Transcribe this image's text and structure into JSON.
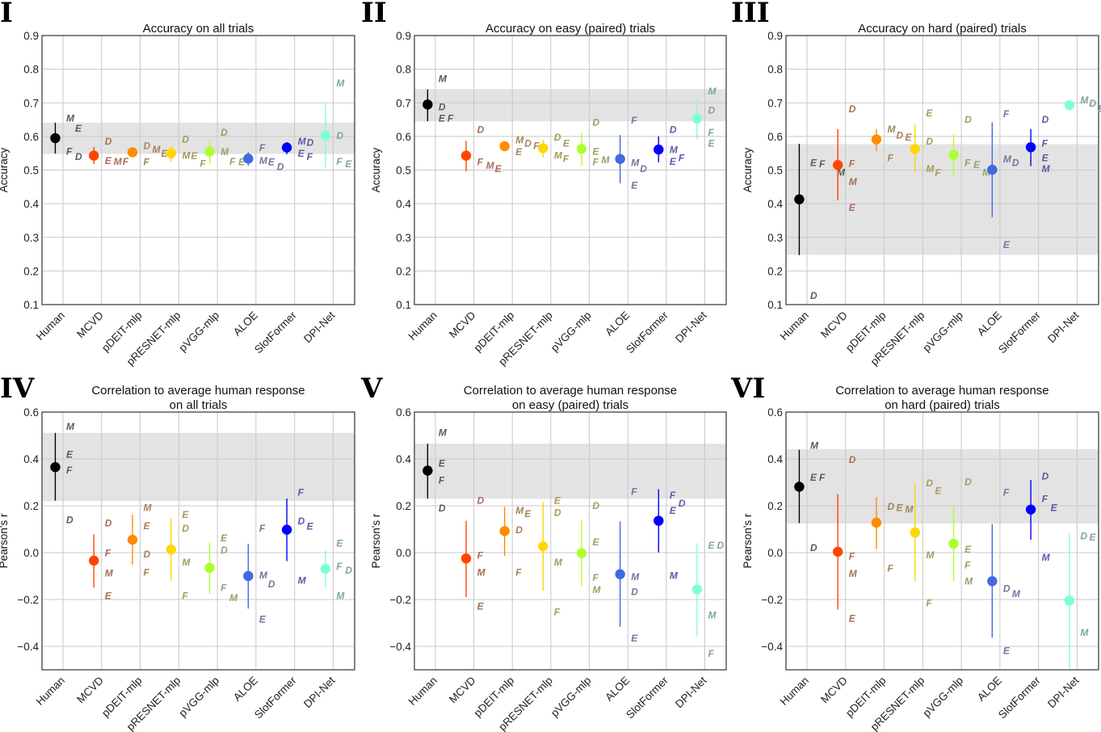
{
  "chart_data": {
    "type": "scatter",
    "models": [
      "Human",
      "MCVD",
      "pDEIT-mlp",
      "pRESNET-mlp",
      "pVGG-mlp",
      "ALOE",
      "SlotFormer",
      "DPI-Net"
    ],
    "model_colors": [
      "#000000",
      "#ff4500",
      "#ff8c00",
      "#ffd700",
      "#adff2f",
      "#4169e1",
      "#0000ff",
      "#7fffd4"
    ],
    "band_color": "#e3e3e3",
    "grid": true,
    "panels": [
      {
        "numeral": "I",
        "title": [
          "Accuracy on all trials"
        ],
        "ylabel": "Accuracy",
        "ylim": [
          0.1,
          0.9
        ],
        "yticks": [
          "0.1",
          "0.2",
          "0.3",
          "0.4",
          "0.5",
          "0.6",
          "0.7",
          "0.8",
          "0.9"
        ],
        "band": [
          0.548,
          0.641
        ],
        "points": [
          {
            "mean": 0.595,
            "ci": [
              0.549,
              0.641
            ],
            "labels": {
              "M": 0.655,
              "E": 0.625,
              "F": 0.557,
              "D": 0.541
            }
          },
          {
            "mean": 0.543,
            "ci": [
              0.518,
              0.569
            ],
            "labels": {
              "D": 0.587,
              "M": 0.527,
              "E": 0.529,
              "F": 0.527
            }
          },
          {
            "mean": 0.553,
            "ci": [
              0.54,
              0.566
            ],
            "labels": {
              "M": 0.563,
              "D": 0.573,
              "E": 0.55,
              "F": 0.525
            }
          },
          {
            "mean": 0.55,
            "ci": [
              0.524,
              0.571
            ],
            "labels": {
              "D": 0.593,
              "M": 0.545,
              "E": 0.543,
              "F": 0.521
            }
          },
          {
            "mean": 0.555,
            "ci": [
              0.52,
              0.59
            ],
            "labels": {
              "D": 0.613,
              "M": 0.555,
              "E": 0.525,
              "F": 0.527
            }
          },
          {
            "mean": 0.534,
            "ci": [
              0.513,
              0.553
            ],
            "labels": {
              "F": 0.567,
              "M": 0.529,
              "E": 0.525,
              "D": 0.511
            }
          },
          {
            "mean": 0.567,
            "ci": [
              0.547,
              0.583
            ],
            "labels": {
              "M": 0.587,
              "D": 0.583,
              "E": 0.55,
              "F": 0.541
            }
          },
          {
            "mean": 0.603,
            "ci": [
              0.505,
              0.7
            ],
            "labels": {
              "M": 0.759,
              "D": 0.603,
              "E": 0.519,
              "F": 0.527
            }
          }
        ]
      },
      {
        "numeral": "II",
        "title": [
          "Accuracy on easy (paired) trials"
        ],
        "ylabel": "Accuracy",
        "ylim": [
          0.1,
          0.9
        ],
        "yticks": [
          "0.1",
          "0.2",
          "0.3",
          "0.4",
          "0.5",
          "0.6",
          "0.7",
          "0.8",
          "0.9"
        ],
        "band": [
          0.645,
          0.741
        ],
        "points": [
          {
            "mean": 0.695,
            "ci": [
              0.645,
              0.74
            ],
            "labels": {
              "M": 0.773,
              "D": 0.689,
              "E": 0.655,
              "F": 0.655
            }
          },
          {
            "mean": 0.543,
            "ci": [
              0.496,
              0.587
            ],
            "labels": {
              "D": 0.621,
              "M": 0.515,
              "E": 0.505,
              "F": 0.525
            }
          },
          {
            "mean": 0.571,
            "ci": [
              0.562,
              0.58
            ],
            "labels": {
              "M": 0.59,
              "D": 0.581,
              "E": 0.555,
              "F": 0.573
            }
          },
          {
            "mean": 0.565,
            "ci": [
              0.538,
              0.59
            ],
            "labels": {
              "D": 0.599,
              "E": 0.581,
              "M": 0.545,
              "F": 0.535
            }
          },
          {
            "mean": 0.563,
            "ci": [
              0.513,
              0.611
            ],
            "labels": {
              "D": 0.643,
              "E": 0.557,
              "M": 0.531,
              "F": 0.525
            }
          },
          {
            "mean": 0.533,
            "ci": [
              0.461,
              0.604
            ],
            "labels": {
              "F": 0.649,
              "M": 0.523,
              "D": 0.505,
              "E": 0.455
            }
          },
          {
            "mean": 0.561,
            "ci": [
              0.523,
              0.6
            ],
            "labels": {
              "D": 0.621,
              "M": 0.561,
              "E": 0.527,
              "F": 0.537
            }
          },
          {
            "mean": 0.653,
            "ci": [
              0.59,
              0.711
            ],
            "labels": {
              "M": 0.735,
              "D": 0.679,
              "F": 0.613,
              "E": 0.581
            }
          }
        ]
      },
      {
        "numeral": "III",
        "title": [
          "Accuracy on hard (paired) trials"
        ],
        "ylabel": "Accuracy",
        "ylim": [
          0.1,
          0.9
        ],
        "yticks": [
          "0.1",
          "0.2",
          "0.3",
          "0.4",
          "0.5",
          "0.6",
          "0.7",
          "0.8",
          "0.9"
        ],
        "band": [
          0.248,
          0.577
        ],
        "points": [
          {
            "mean": 0.413,
            "ci": [
              0.247,
              0.578
            ],
            "labels": {
              "E": 0.523,
              "F": 0.519,
              "M": 0.494,
              "D": 0.128
            }
          },
          {
            "mean": 0.515,
            "ci": [
              0.41,
              0.622
            ],
            "labels": {
              "D": 0.683,
              "F": 0.521,
              "M": 0.466,
              "E": 0.389
            }
          },
          {
            "mean": 0.591,
            "ci": [
              0.556,
              0.622
            ],
            "labels": {
              "M": 0.623,
              "D": 0.605,
              "E": 0.599,
              "F": 0.537
            }
          },
          {
            "mean": 0.563,
            "ci": [
              0.493,
              0.635
            ],
            "labels": {
              "E": 0.671,
              "D": 0.587,
              "M": 0.505,
              "F": 0.493
            }
          },
          {
            "mean": 0.545,
            "ci": [
              0.482,
              0.607
            ],
            "labels": {
              "D": 0.651,
              "E": 0.517,
              "F": 0.523,
              "M": 0.494
            }
          },
          {
            "mean": 0.501,
            "ci": [
              0.36,
              0.642
            ],
            "labels": {
              "F": 0.668,
              "M": 0.534,
              "D": 0.523,
              "E": 0.279
            }
          },
          {
            "mean": 0.568,
            "ci": [
              0.512,
              0.622
            ],
            "labels": {
              "D": 0.651,
              "F": 0.581,
              "E": 0.537,
              "M": 0.505
            }
          },
          {
            "mean": 0.693,
            "ci": [
              0.69,
              0.697
            ],
            "labels": {
              "M": 0.709,
              "D": 0.7,
              "E": 0.684,
              "F": 0.684
            }
          }
        ]
      },
      {
        "numeral": "IV",
        "title": [
          "Correlation to average human response",
          "on all trials"
        ],
        "ylabel": "Pearson's r",
        "ylim": [
          -0.5,
          0.6
        ],
        "yticks": [
          "−0.4",
          "−0.2",
          "0.0",
          "0.2",
          "0.4",
          "0.6"
        ],
        "band": [
          0.22,
          0.511
        ],
        "points": [
          {
            "mean": 0.365,
            "ci": [
              0.222,
              0.511
            ],
            "labels": {
              "M": 0.54,
              "E": 0.421,
              "F": 0.353,
              "D": 0.141
            }
          },
          {
            "mean": -0.034,
            "ci": [
              -0.149,
              0.078
            ],
            "labels": {
              "D": 0.128,
              "F": 0.0,
              "M": -0.086,
              "E": -0.182
            }
          },
          {
            "mean": 0.055,
            "ci": [
              -0.051,
              0.162
            ],
            "labels": {
              "M": 0.193,
              "E": 0.115,
              "D": -0.005,
              "F": -0.082
            }
          },
          {
            "mean": 0.013,
            "ci": [
              -0.12,
              0.147
            ],
            "labels": {
              "E": 0.164,
              "D": 0.105,
              "M": -0.04,
              "F": -0.182
            }
          },
          {
            "mean": -0.065,
            "ci": [
              -0.176,
              0.042
            ],
            "labels": {
              "E": 0.063,
              "D": 0.012,
              "F": -0.149,
              "M": -0.191
            }
          },
          {
            "mean": -0.1,
            "ci": [
              -0.239,
              0.038
            ],
            "labels": {
              "F": 0.105,
              "M": -0.095,
              "D": -0.132,
              "E": -0.283
            }
          },
          {
            "mean": 0.098,
            "ci": [
              -0.036,
              0.231
            ],
            "labels": {
              "F": 0.258,
              "D": 0.136,
              "E": 0.113,
              "M": -0.117
            }
          },
          {
            "mean": -0.069,
            "ci": [
              -0.149,
              0.009
            ],
            "labels": {
              "E": 0.042,
              "F": -0.057,
              "D": -0.074,
              "M": -0.182
            }
          }
        ]
      },
      {
        "numeral": "V",
        "title": [
          "Correlation to average human response",
          "on easy (paired) trials"
        ],
        "ylabel": "Pearson's r",
        "ylim": [
          -0.5,
          0.6
        ],
        "yticks": [
          "−0.4",
          "−0.2",
          "0.0",
          "0.2",
          "0.4",
          "0.6"
        ],
        "band": [
          0.23,
          0.465
        ],
        "points": [
          {
            "mean": 0.35,
            "ci": [
              0.231,
              0.465
            ],
            "labels": {
              "M": 0.514,
              "E": 0.382,
              "F": 0.31,
              "D": 0.191
            }
          },
          {
            "mean": -0.025,
            "ci": [
              -0.189,
              0.136
            ],
            "labels": {
              "D": 0.224,
              "F": -0.011,
              "M": -0.082,
              "E": -0.228
            }
          },
          {
            "mean": 0.092,
            "ci": [
              -0.014,
              0.195
            ],
            "labels": {
              "M": 0.181,
              "E": 0.167,
              "D": 0.098,
              "F": -0.082
            }
          },
          {
            "mean": 0.027,
            "ci": [
              -0.163,
              0.216
            ],
            "labels": {
              "E": 0.225,
              "D": 0.173,
              "M": -0.04,
              "F": -0.252
            }
          },
          {
            "mean": -0.002,
            "ci": [
              -0.143,
              0.138
            ],
            "labels": {
              "D": 0.202,
              "E": 0.046,
              "F": -0.105,
              "M": -0.157
            }
          },
          {
            "mean": -0.092,
            "ci": [
              -0.317,
              0.133
            ],
            "labels": {
              "F": 0.262,
              "M": -0.102,
              "D": -0.166,
              "E": -0.363
            }
          },
          {
            "mean": 0.136,
            "ci": [
              0.001,
              0.271
            ],
            "labels": {
              "F": 0.247,
              "D": 0.212,
              "E": 0.181,
              "M": -0.096
            }
          },
          {
            "mean": -0.157,
            "ci": [
              -0.358,
              0.04
            ],
            "labels": {
              "E": 0.032,
              "D": 0.032,
              "M": -0.266,
              "F": -0.43
            }
          }
        ]
      },
      {
        "numeral": "VI",
        "title": [
          "Correlation to average human response",
          "on hard (paired) trials"
        ],
        "ylabel": "Pearson's r",
        "ylim": [
          -0.5,
          0.6
        ],
        "yticks": [
          "−0.4",
          "−0.2",
          "0.0",
          "0.2",
          "0.4",
          "0.6"
        ],
        "band": [
          0.124,
          0.442
        ],
        "points": [
          {
            "mean": 0.281,
            "ci": [
              0.126,
              0.439
            ],
            "labels": {
              "M": 0.459,
              "E": 0.322,
              "F": 0.322,
              "D": 0.023
            }
          },
          {
            "mean": 0.004,
            "ci": [
              -0.243,
              0.25
            ],
            "labels": {
              "D": 0.399,
              "F": -0.014,
              "M": -0.088,
              "E": -0.28
            }
          },
          {
            "mean": 0.128,
            "ci": [
              0.015,
              0.236
            ],
            "labels": {
              "M": 0.187,
              "E": 0.193,
              "D": 0.199,
              "F": -0.065
            }
          },
          {
            "mean": 0.086,
            "ci": [
              -0.122,
              0.296
            ],
            "labels": {
              "D": 0.298,
              "E": 0.265,
              "M": -0.008,
              "F": -0.214
            }
          },
          {
            "mean": 0.038,
            "ci": [
              -0.122,
              0.199
            ],
            "labels": {
              "D": 0.304,
              "E": 0.015,
              "F": -0.051,
              "M": -0.12
            }
          },
          {
            "mean": -0.122,
            "ci": [
              -0.363,
              0.121
            ],
            "labels": {
              "F": 0.258,
              "D": -0.151,
              "M": -0.174,
              "E": -0.418
            }
          },
          {
            "mean": 0.184,
            "ci": [
              0.055,
              0.31
            ],
            "labels": {
              "D": 0.328,
              "F": 0.231,
              "E": 0.193,
              "M": -0.019
            }
          },
          {
            "mean": -0.205,
            "ci": [
              -0.495,
              0.084
            ],
            "labels": {
              "E": 0.067,
              "D": 0.072,
              "M": -0.34
            }
          }
        ]
      }
    ]
  }
}
